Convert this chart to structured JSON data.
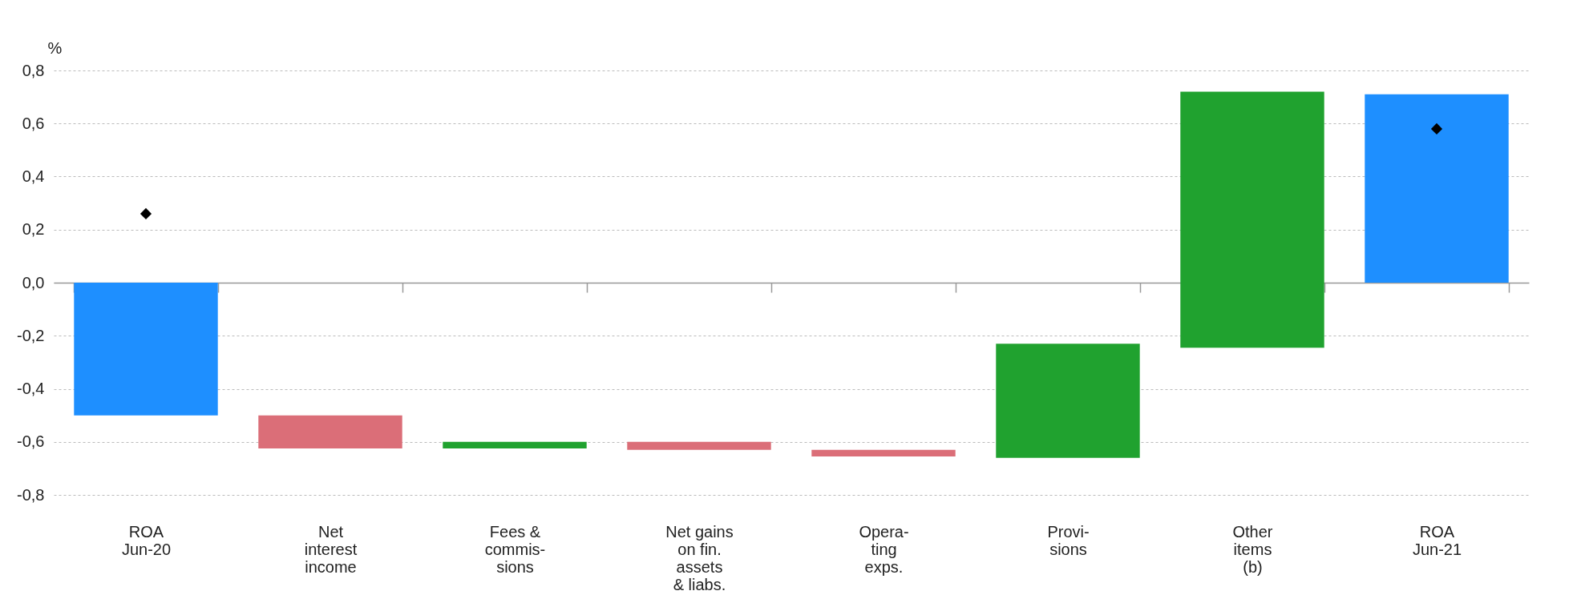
{
  "chart_data": {
    "type": "bar",
    "ylabel": "%",
    "categories": [
      "ROA\nJun-20",
      "Net\ninterest\nincome",
      "Fees &\ncommis-\nsions",
      "Net gains\non fin.\nassets\n& liabs.",
      "Opera-\nting\nexps.",
      "Provi-\nsions",
      "Other\nitems\n(b)",
      "ROA\nJun-21"
    ],
    "series": [
      {
        "base": [
          0,
          -0.5,
          -0.625,
          -0.6,
          -0.63,
          -0.66,
          -0.245,
          0
        ],
        "values": [
          -0.5,
          -0.125,
          0.025,
          -0.03,
          -0.025,
          0.43,
          0.965,
          0.71
        ],
        "colors": [
          "#1e8fff",
          "#db6e78",
          "#20a22f",
          "#db6e78",
          "#db6e78",
          "#20a22f",
          "#20a22f",
          "#1e8fff"
        ]
      },
      {
        "type": "scatter",
        "x": [
          "ROA\nJun-20",
          "ROA\nJun-21"
        ],
        "values": [
          0.26,
          0.58
        ],
        "color": "#000000"
      }
    ],
    "marker": "diamond",
    "ylim": [
      -0.8,
      0.8
    ],
    "yticks": [
      {
        "value": -0.8,
        "label": "-0,8"
      },
      {
        "value": -0.6,
        "label": "-0,6"
      },
      {
        "value": -0.4,
        "label": "-0,4"
      },
      {
        "value": -0.2,
        "label": "-0,2"
      },
      {
        "value": 0,
        "label": "0,0"
      },
      {
        "value": 0.2,
        "label": "0,2"
      },
      {
        "value": 0.4,
        "label": "0,4"
      },
      {
        "value": 0.6,
        "label": "0,6"
      },
      {
        "value": 0.8,
        "label": "0,8"
      }
    ],
    "grid": "y"
  }
}
